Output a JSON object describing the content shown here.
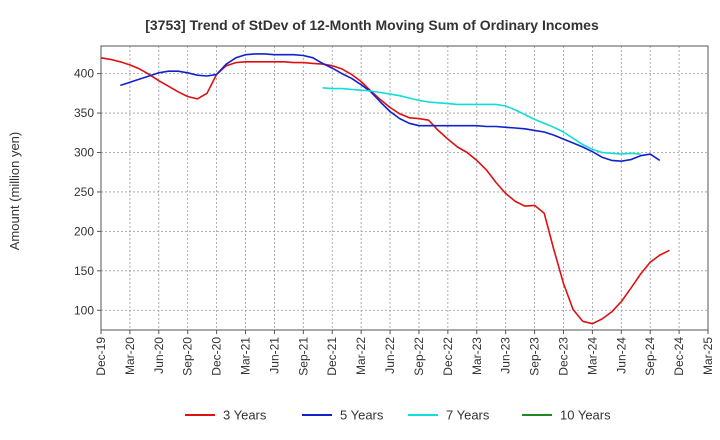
{
  "chart_data": {
    "type": "line",
    "title": "[3753]  Trend of StDev of 12-Month Moving Sum of Ordinary Incomes",
    "xlabel": "",
    "ylabel": "Amount (million yen)",
    "ylim": [
      75,
      435
    ],
    "yticks": [
      100,
      150,
      200,
      250,
      300,
      350,
      400
    ],
    "xrange": [
      0,
      63
    ],
    "xtick_labels": [
      "Dec-19",
      "Mar-20",
      "Jun-20",
      "Sep-20",
      "Dec-20",
      "Mar-21",
      "Jun-21",
      "Sep-21",
      "Dec-21",
      "Mar-22",
      "Jun-22",
      "Sep-22",
      "Dec-22",
      "Mar-23",
      "Jun-23",
      "Sep-23",
      "Dec-23",
      "Mar-24",
      "Jun-24",
      "Sep-24",
      "Dec-24",
      "Mar-25"
    ],
    "grid": true,
    "legend_position": "bottom",
    "series": [
      {
        "name": "3 Years",
        "color": "#dd1111",
        "start": 0,
        "values": [
          420,
          418,
          415,
          411,
          406,
          399,
          391,
          384,
          377,
          371,
          368,
          375,
          399,
          410,
          414,
          415,
          415,
          415,
          415,
          415,
          414,
          414,
          413,
          412,
          410,
          406,
          399,
          390,
          378,
          367,
          357,
          349,
          344,
          343,
          341,
          328,
          317,
          307,
          300,
          290,
          278,
          262,
          248,
          238,
          232,
          233,
          223,
          177,
          134,
          101,
          86,
          83,
          89,
          98,
          111,
          128,
          146,
          161,
          170,
          176
        ]
      },
      {
        "name": "5 Years",
        "color": "#1122cc",
        "start": 2,
        "values": [
          385,
          389,
          393,
          397,
          401,
          403,
          403,
          401,
          398,
          397,
          399,
          412,
          420,
          424,
          425,
          425,
          424,
          424,
          424,
          423,
          420,
          413,
          407,
          400,
          394,
          386,
          377,
          364,
          352,
          343,
          337,
          334,
          334,
          334,
          334,
          334,
          334,
          334,
          333,
          333,
          332,
          331,
          330,
          328,
          326,
          322,
          317,
          312,
          307,
          301,
          294,
          290,
          289,
          291,
          296,
          298,
          290
        ]
      },
      {
        "name": "7 Years",
        "color": "#11dddd",
        "start": 23,
        "values": [
          382,
          381,
          381,
          380,
          379,
          378,
          376,
          374,
          372,
          369,
          366,
          364,
          363,
          362,
          361,
          361,
          361,
          361,
          361,
          359,
          354,
          348,
          342,
          337,
          332,
          326,
          318,
          310,
          304,
          300,
          299,
          298,
          299,
          298
        ]
      },
      {
        "name": "10 Years",
        "color": "#228822",
        "start": 0,
        "values": []
      }
    ]
  }
}
